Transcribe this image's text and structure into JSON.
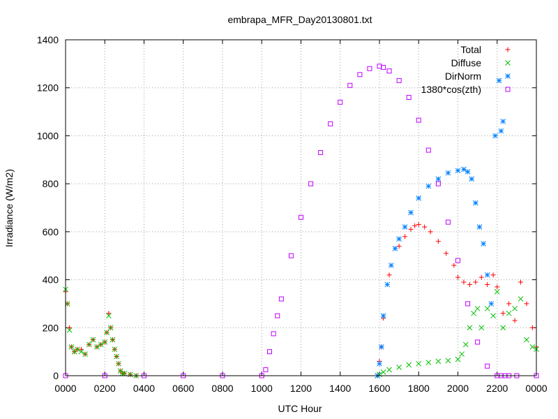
{
  "chart_data": {
    "type": "scatter",
    "title": "embrapa_MFR_Day20130801.txt",
    "xlabel": "UTC Hour",
    "ylabel": "Irradiance (W/m2)",
    "xlim": [
      0,
      24
    ],
    "ylim": [
      0,
      1400
    ],
    "grid": true,
    "legend_position": "top-right",
    "x_tick_values": [
      0,
      2,
      4,
      6,
      8,
      10,
      12,
      14,
      16,
      18,
      20,
      22,
      24
    ],
    "x_tick_labels": [
      "0000",
      "0200",
      "0400",
      "0600",
      "0800",
      "1000",
      "1200",
      "1400",
      "1600",
      "1800",
      "2000",
      "2200",
      "0000"
    ],
    "y_ticks": [
      0,
      200,
      400,
      600,
      800,
      1000,
      1200,
      1400
    ],
    "series": [
      {
        "name": "Total",
        "marker": "+",
        "color": "#ff0000",
        "x": [
          0.0,
          0.1,
          0.2,
          0.3,
          0.45,
          0.6,
          0.8,
          1.0,
          1.2,
          1.4,
          1.6,
          1.8,
          2.0,
          2.1,
          2.2,
          2.3,
          2.4,
          2.5,
          2.6,
          2.7,
          2.8,
          2.9,
          3.0,
          3.3,
          3.6,
          15.9,
          16.0,
          16.1,
          16.2,
          16.5,
          17.0,
          17.3,
          17.6,
          17.8,
          18.0,
          18.3,
          18.6,
          19.0,
          19.4,
          19.8,
          20.0,
          20.3,
          20.6,
          20.9,
          21.2,
          21.5,
          21.8,
          22.0,
          22.3,
          22.6,
          22.9,
          23.2,
          23.5,
          23.8,
          24.0
        ],
        "y": [
          350,
          300,
          200,
          120,
          100,
          110,
          110,
          90,
          130,
          150,
          120,
          130,
          140,
          180,
          260,
          200,
          150,
          110,
          80,
          50,
          20,
          10,
          10,
          5,
          0,
          0,
          60,
          120,
          240,
          420,
          540,
          580,
          610,
          625,
          630,
          620,
          600,
          560,
          510,
          460,
          410,
          390,
          380,
          390,
          410,
          380,
          420,
          370,
          260,
          300,
          230,
          390,
          300,
          200,
          120
        ]
      },
      {
        "name": "Diffuse",
        "marker": "x",
        "color": "#00c000",
        "x": [
          0.0,
          0.1,
          0.2,
          0.3,
          0.45,
          0.6,
          0.8,
          1.0,
          1.2,
          1.4,
          1.6,
          1.8,
          2.0,
          2.1,
          2.2,
          2.3,
          2.4,
          2.5,
          2.6,
          2.7,
          2.8,
          2.9,
          3.0,
          3.3,
          3.6,
          15.9,
          16.0,
          16.2,
          16.5,
          17.0,
          17.5,
          18.0,
          18.5,
          19.0,
          19.5,
          20.0,
          20.2,
          20.4,
          20.6,
          20.8,
          21.0,
          21.2,
          21.5,
          21.8,
          22.0,
          22.3,
          22.6,
          22.9,
          23.2,
          23.5,
          23.8,
          24.0
        ],
        "y": [
          360,
          300,
          190,
          120,
          100,
          110,
          100,
          90,
          130,
          150,
          120,
          130,
          140,
          180,
          250,
          200,
          150,
          110,
          80,
          50,
          20,
          10,
          10,
          5,
          0,
          0,
          5,
          15,
          25,
          35,
          45,
          50,
          55,
          60,
          63,
          68,
          90,
          130,
          200,
          260,
          280,
          200,
          280,
          250,
          350,
          200,
          260,
          280,
          320,
          150,
          120,
          110
        ]
      },
      {
        "name": "DirNorm",
        "marker": "*",
        "color": "#0080ff",
        "x": [
          15.9,
          16.0,
          16.1,
          16.2,
          16.4,
          16.6,
          16.8,
          17.0,
          17.3,
          17.6,
          18.0,
          18.5,
          19.0,
          19.5,
          20.0,
          20.3,
          20.5,
          20.7,
          20.9,
          21.1,
          21.3,
          21.5,
          21.7,
          21.9,
          22.1,
          22.2,
          22.3
        ],
        "y": [
          0,
          50,
          120,
          250,
          380,
          460,
          530,
          570,
          620,
          680,
          740,
          790,
          820,
          845,
          855,
          860,
          850,
          820,
          720,
          620,
          550,
          420,
          300,
          1000,
          1230,
          1020,
          1060
        ]
      },
      {
        "name": "1380*cos(zth)",
        "marker": "square",
        "color": "#c000ff",
        "x": [
          0,
          2,
          4,
          6,
          8,
          10,
          10.2,
          10.4,
          10.6,
          10.8,
          11.0,
          11.5,
          12.0,
          12.5,
          13.0,
          13.5,
          14.0,
          14.5,
          15.0,
          15.5,
          16.0,
          16.2,
          16.5,
          17.0,
          17.5,
          18.0,
          18.5,
          19.0,
          19.5,
          20.0,
          20.5,
          21.0,
          21.5,
          22.0,
          22.2,
          22.4,
          22.6,
          23,
          24
        ],
        "y": [
          0,
          0,
          0,
          0,
          0,
          0,
          25,
          100,
          175,
          250,
          320,
          500,
          660,
          800,
          930,
          1050,
          1140,
          1210,
          1255,
          1280,
          1290,
          1285,
          1270,
          1230,
          1160,
          1065,
          940,
          800,
          640,
          480,
          300,
          140,
          40,
          0,
          0,
          0,
          0,
          0,
          0
        ]
      }
    ]
  }
}
